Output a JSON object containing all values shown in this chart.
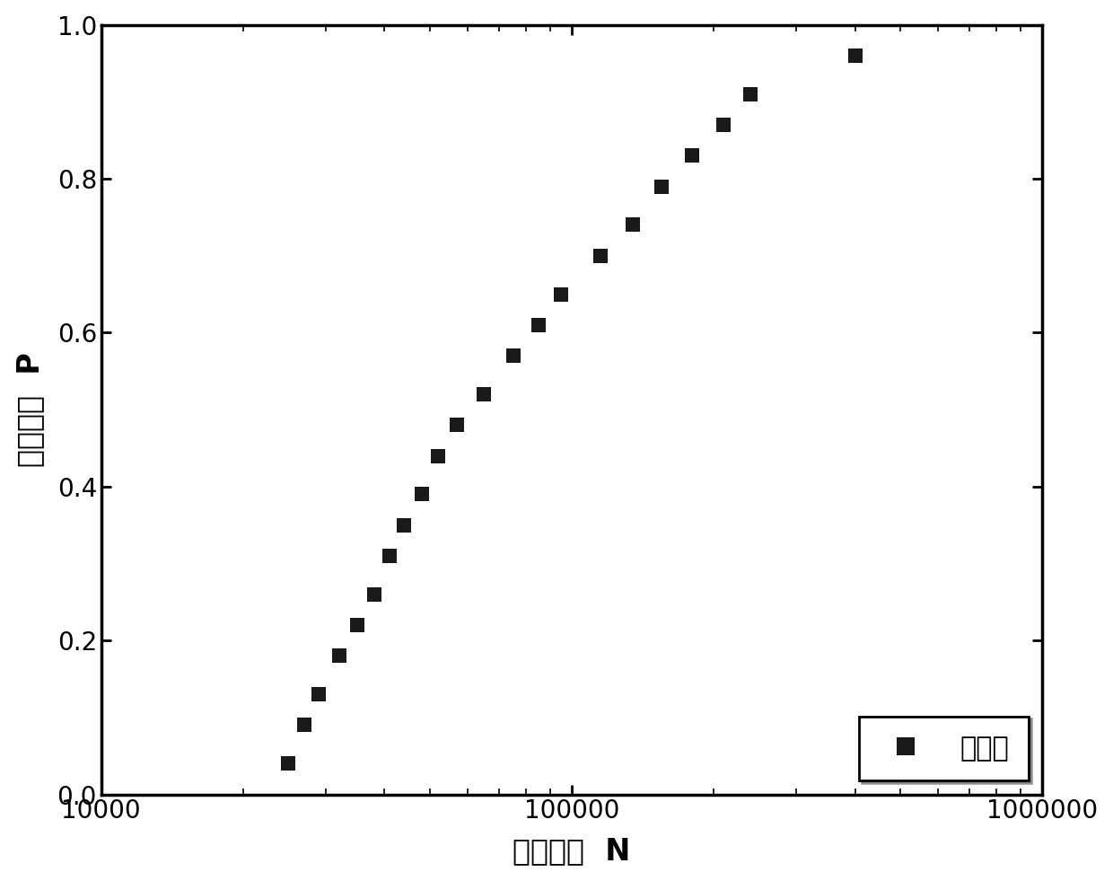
{
  "x_data": [
    25000,
    27000,
    29000,
    32000,
    35000,
    38000,
    41000,
    44000,
    48000,
    52000,
    57000,
    65000,
    75000,
    85000,
    95000,
    115000,
    135000,
    155000,
    180000,
    210000,
    240000,
    400000
  ],
  "y_data": [
    0.04,
    0.09,
    0.13,
    0.18,
    0.22,
    0.26,
    0.31,
    0.35,
    0.39,
    0.44,
    0.48,
    0.52,
    0.57,
    0.61,
    0.65,
    0.7,
    0.74,
    0.79,
    0.83,
    0.87,
    0.91,
    0.96
  ],
  "marker": "s",
  "marker_color": "#1a1a1a",
  "marker_size": 11,
  "xlabel": "疲劳寿命  N",
  "ylabel": "累积概率  P",
  "xlim": [
    10000,
    1000000
  ],
  "ylim": [
    0.0,
    1.0
  ],
  "yticks": [
    0.0,
    0.2,
    0.4,
    0.6,
    0.8,
    1.0
  ],
  "xticks": [
    10000,
    100000,
    1000000
  ],
  "xticklabels": [
    "10000",
    "100000",
    "1000000"
  ],
  "legend_label": "秩统计",
  "background_color": "#ffffff",
  "axis_linewidth": 2.5,
  "xlabel_fontsize": 24,
  "ylabel_fontsize": 24,
  "tick_fontsize": 20,
  "legend_fontsize": 22
}
